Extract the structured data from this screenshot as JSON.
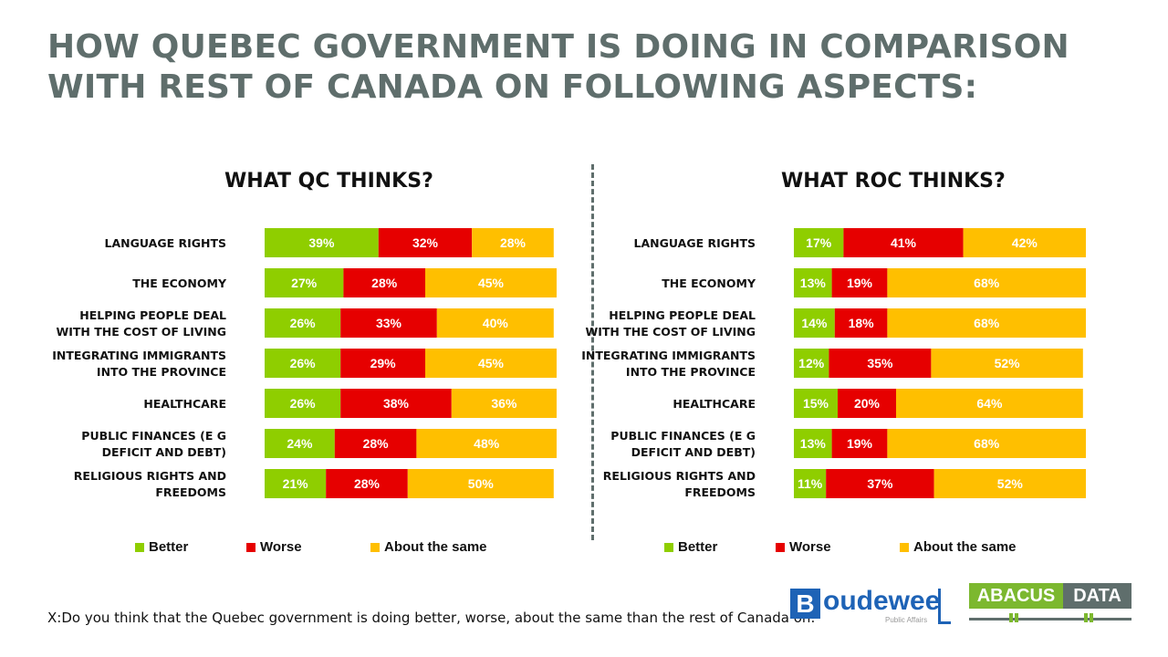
{
  "title": "HOW QUEBEC GOVERNMENT IS DOING IN COMPARISON WITH REST OF CANADA ON FOLLOWING ASPECTS:",
  "colors": {
    "better": "#8fce00",
    "worse": "#e60000",
    "same": "#ffbf00",
    "title": "#5f6e6c"
  },
  "legend": {
    "better": "Better",
    "worse": "Worse",
    "same": "About the same"
  },
  "footnote": "X:Do you think that the Quebec government is doing better, worse, about the same than the rest of Canada on:",
  "logos": {
    "boudeweel": {
      "initial": "B",
      "name": "oudewee",
      "tagline": "Public Affairs"
    },
    "abacus": {
      "left": "ABACUS",
      "right": "DATA"
    }
  },
  "chart_data": [
    {
      "type": "bar",
      "stacked": true,
      "orientation": "horizontal",
      "title": "WHAT QC THINKS?",
      "categories": [
        [
          "LANGUAGE RIGHTS"
        ],
        [
          "THE ECONOMY"
        ],
        [
          "HELPING PEOPLE DEAL",
          "WITH THE COST OF LIVING"
        ],
        [
          "INTEGRATING IMMIGRANTS",
          "INTO THE PROVINCE"
        ],
        [
          "HEALTHCARE"
        ],
        [
          "PUBLIC FINANCES (E G",
          "DEFICIT AND DEBT)"
        ],
        [
          "RELIGIOUS RIGHTS AND",
          "FREEDOMS"
        ]
      ],
      "series": [
        {
          "name": "Better",
          "values": [
            39,
            27,
            26,
            26,
            26,
            24,
            21
          ]
        },
        {
          "name": "Worse",
          "values": [
            32,
            28,
            33,
            29,
            38,
            28,
            28
          ]
        },
        {
          "name": "About the same",
          "values": [
            28,
            45,
            40,
            45,
            36,
            48,
            50
          ]
        }
      ],
      "unit": "%"
    },
    {
      "type": "bar",
      "stacked": true,
      "orientation": "horizontal",
      "title": "WHAT ROC THINKS?",
      "categories": [
        [
          "LANGUAGE RIGHTS"
        ],
        [
          "THE ECONOMY"
        ],
        [
          "HELPING PEOPLE DEAL",
          "WITH THE COST OF LIVING"
        ],
        [
          "INTEGRATING IMMIGRANTS",
          "INTO THE PROVINCE"
        ],
        [
          "HEALTHCARE"
        ],
        [
          "PUBLIC FINANCES (E G",
          "DEFICIT AND DEBT)"
        ],
        [
          "RELIGIOUS RIGHTS AND",
          "FREEDOMS"
        ]
      ],
      "series": [
        {
          "name": "Better",
          "values": [
            17,
            13,
            14,
            12,
            15,
            13,
            11
          ]
        },
        {
          "name": "Worse",
          "values": [
            41,
            19,
            18,
            35,
            20,
            19,
            37
          ]
        },
        {
          "name": "About the same",
          "values": [
            42,
            68,
            68,
            52,
            64,
            68,
            52
          ]
        }
      ],
      "unit": "%"
    }
  ]
}
